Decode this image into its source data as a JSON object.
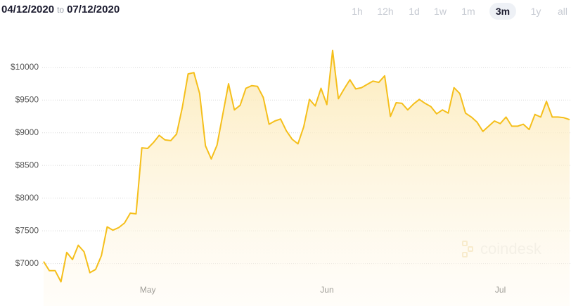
{
  "header": {
    "from": "04/12/2020",
    "separator": "to",
    "to": "07/12/2020"
  },
  "range_buttons": [
    {
      "label": "1h",
      "selected": false
    },
    {
      "label": "12h",
      "selected": false
    },
    {
      "label": "1d",
      "selected": false
    },
    {
      "label": "1w",
      "selected": false
    },
    {
      "label": "1m",
      "selected": false
    },
    {
      "label": "3m",
      "selected": true
    },
    {
      "label": "1y",
      "selected": false
    },
    {
      "label": "all",
      "selected": false
    }
  ],
  "watermark": "coindesk",
  "chart_data": {
    "type": "area",
    "color": "#f5bf1b",
    "grid": true,
    "values": [
      7030,
      6890,
      6890,
      6720,
      7170,
      7060,
      7280,
      7180,
      6860,
      6910,
      7120,
      7560,
      7510,
      7550,
      7620,
      7770,
      7760,
      8770,
      8760,
      8850,
      8960,
      8890,
      8880,
      8980,
      9390,
      9900,
      9920,
      9600,
      8800,
      8600,
      8810,
      9280,
      9750,
      9350,
      9420,
      9680,
      9720,
      9710,
      9540,
      9130,
      9180,
      9210,
      9030,
      8900,
      8830,
      9090,
      9510,
      9410,
      9680,
      9430,
      10260,
      9520,
      9670,
      9810,
      9670,
      9690,
      9740,
      9790,
      9770,
      9870,
      9250,
      9460,
      9450,
      9350,
      9440,
      9510,
      9450,
      9400,
      9290,
      9350,
      9300,
      9690,
      9600,
      9300,
      9240,
      9160,
      9020,
      9100,
      9180,
      9140,
      9240,
      9100,
      9100,
      9130,
      9050,
      9280,
      9240,
      9480,
      9240,
      9240,
      9230,
      9200
    ],
    "xlim": [
      0,
      91
    ],
    "xticks": [
      {
        "value": 19,
        "label": "May"
      },
      {
        "value": 50,
        "label": "Jun"
      },
      {
        "value": 80,
        "label": "Jul"
      }
    ],
    "ylim": [
      6350,
      10600
    ],
    "yticks": [
      {
        "value": 7000,
        "label": "$7000"
      },
      {
        "value": 7500,
        "label": "$7500"
      },
      {
        "value": 8000,
        "label": "$8000"
      },
      {
        "value": 8500,
        "label": "$8500"
      },
      {
        "value": 9000,
        "label": "$9000"
      },
      {
        "value": 9500,
        "label": "$9500"
      },
      {
        "value": 10000,
        "label": "$10000"
      }
    ]
  }
}
